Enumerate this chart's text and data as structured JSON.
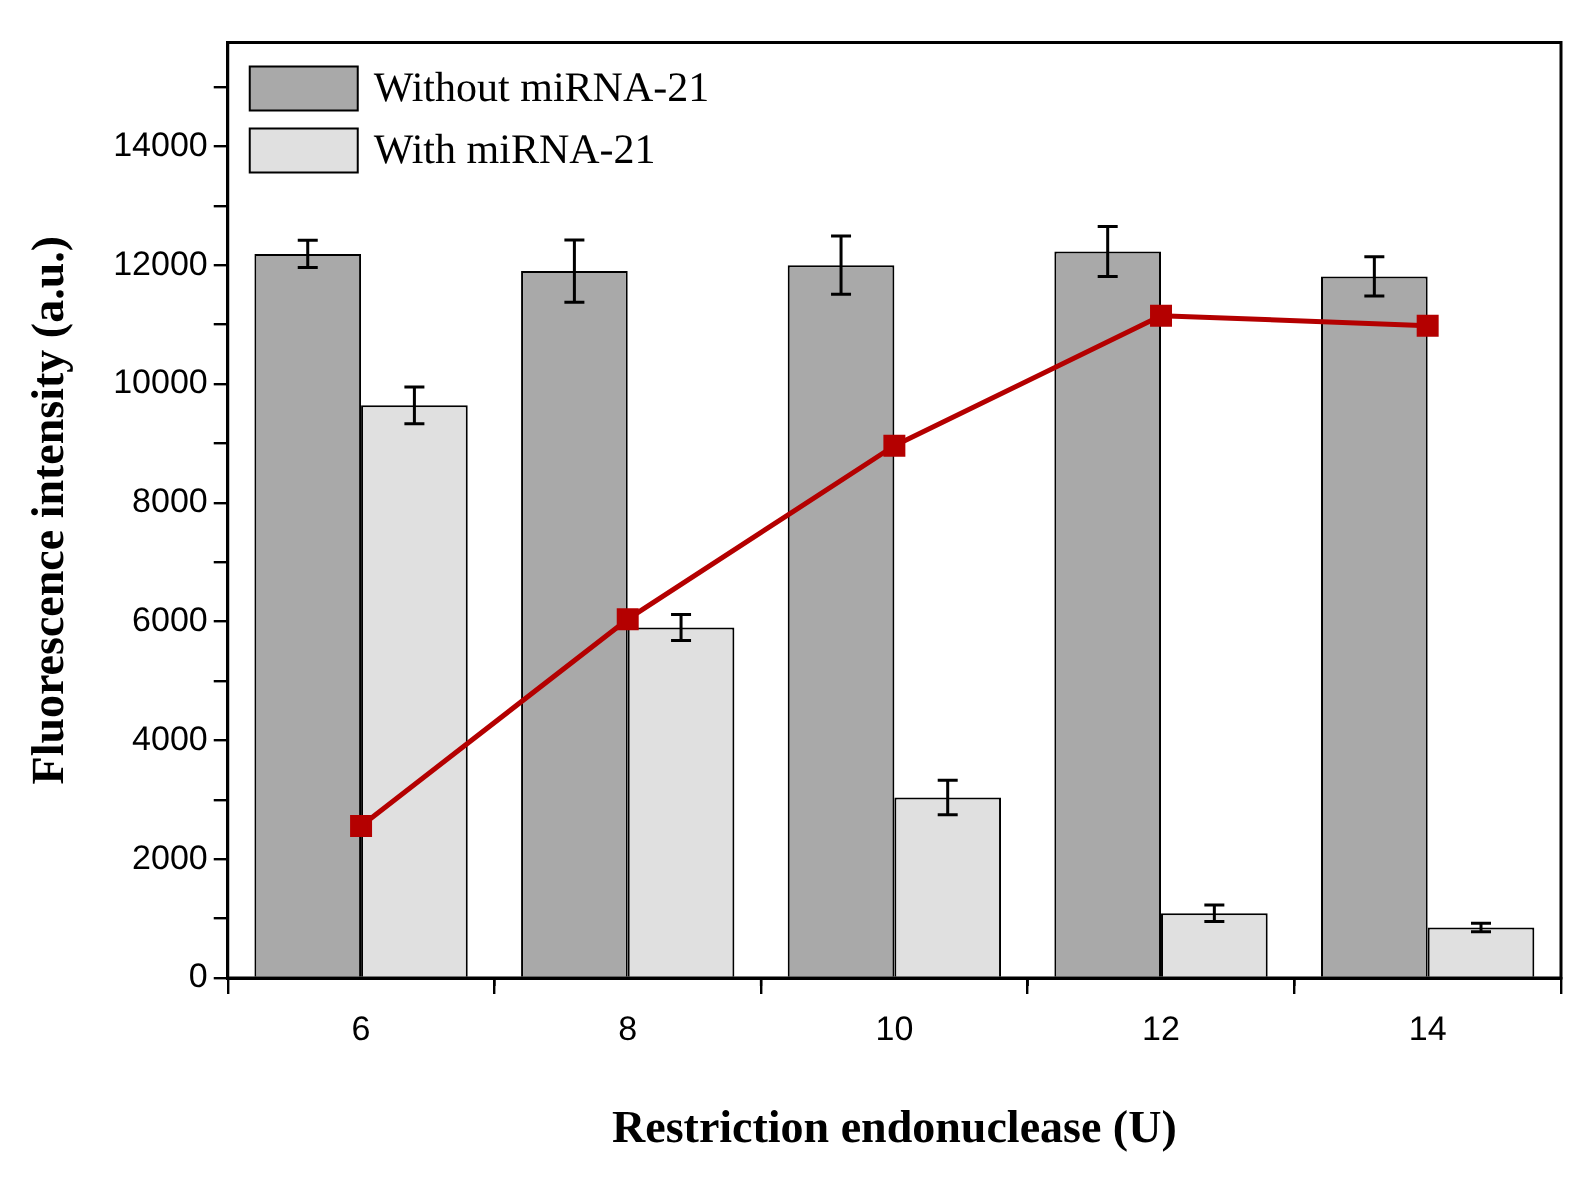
{
  "chart_data": {
    "type": "bar",
    "xlabel": "Restriction endonuclease (U)",
    "ylabel": "Fluorescence intensity (a.u.)",
    "categories": [
      "6",
      "8",
      "10",
      "12",
      "14"
    ],
    "ylim": [
      0,
      15750
    ],
    "yticks": [
      0,
      {
        "value": 1000,
        "label": null
      },
      2000,
      {
        "value": 3000,
        "label": null
      },
      4000,
      {
        "value": 5000,
        "label": null
      },
      6000,
      {
        "value": 7000,
        "label": null
      },
      8000,
      {
        "value": 9000,
        "label": null
      },
      10000,
      {
        "value": 11000,
        "label": null
      },
      12000,
      {
        "value": 13000,
        "label": null
      },
      14000,
      {
        "value": 15000,
        "label": null
      }
    ],
    "legend": "top left",
    "marker": "square",
    "series": [
      {
        "name": "Without miRNA-21",
        "color": "#a9a9a9",
        "values": [
          12190,
          11900,
          12000,
          12230,
          11810
        ],
        "errors": [
          230,
          525,
          490,
          420,
          330
        ]
      },
      {
        "name": "With miRNA-21",
        "color": "#e0e0e0",
        "values": [
          9640,
          5900,
          3040,
          1090,
          850
        ],
        "errors": [
          310,
          220,
          290,
          140,
          70
        ]
      },
      {
        "type": "line",
        "color": "#b40000",
        "values": [
          2560,
          6040,
          8960,
          11150,
          10980
        ]
      }
    ]
  }
}
